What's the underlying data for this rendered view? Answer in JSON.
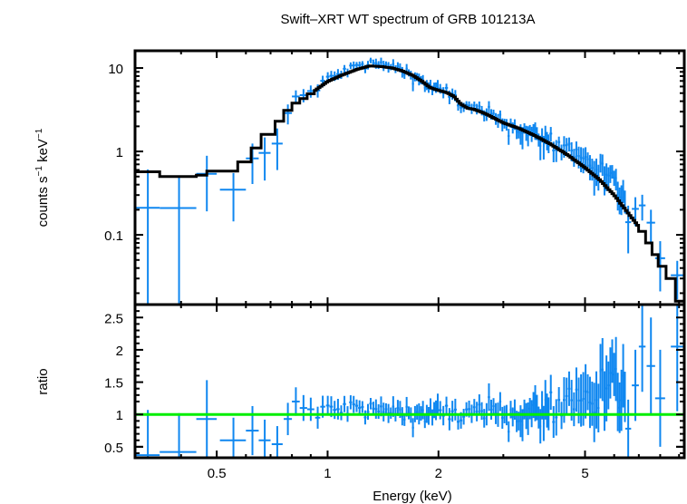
{
  "chart_data": {
    "type": "scatter",
    "title": "Swift–XRT WT spectrum of GRB 101213A",
    "xlabel": "Energy (keV)",
    "xscale": "log",
    "xlim": [
      0.3,
      9.3
    ],
    "x_ticks": [
      {
        "value": 0.5,
        "label": "0.5"
      },
      {
        "value": 1,
        "label": "1"
      },
      {
        "value": 2,
        "label": "2"
      },
      {
        "value": 5,
        "label": "5"
      }
    ],
    "colors": {
      "data": "#0f87f0",
      "model": "#000000",
      "unity": "#00ee00",
      "frame": "#000000"
    },
    "panels": {
      "spectrum": {
        "ylabel_main": "counts s",
        "ylabel_sup1": "−1",
        "ylabel_mid": " keV",
        "ylabel_sup2": "−1",
        "yscale": "log",
        "ylim": [
          0.0146,
          16.1
        ],
        "y_ticks": [
          {
            "value": 10,
            "label": "10"
          },
          {
            "value": 1,
            "label": "1"
          },
          {
            "value": 0.1,
            "label": "0.1"
          }
        ],
        "model_steps_low": [
          [
            0.3,
            0.35,
            0.57
          ],
          [
            0.35,
            0.44,
            0.5
          ],
          [
            0.44,
            0.47,
            0.52
          ],
          [
            0.47,
            0.57,
            0.58
          ],
          [
            0.57,
            0.62,
            0.75
          ],
          [
            0.62,
            0.66,
            1.1
          ],
          [
            0.66,
            0.72,
            1.6
          ],
          [
            0.72,
            0.76,
            2.3
          ],
          [
            0.76,
            0.8,
            3.1
          ],
          [
            0.8,
            0.84,
            3.8
          ],
          [
            0.84,
            0.88,
            4.3
          ],
          [
            0.88,
            0.92,
            4.9
          ]
        ],
        "model_curve": [
          [
            0.92,
            5.3
          ],
          [
            1.0,
            6.9
          ],
          [
            1.1,
            8.3
          ],
          [
            1.2,
            9.6
          ],
          [
            1.3,
            10.6
          ],
          [
            1.4,
            10.4
          ],
          [
            1.5,
            10.0
          ],
          [
            1.6,
            9.2
          ],
          [
            1.7,
            8.2
          ],
          [
            1.8,
            7.0
          ],
          [
            1.9,
            5.8
          ],
          [
            2.0,
            5.4
          ],
          [
            2.1,
            5.1
          ],
          [
            2.2,
            4.6
          ],
          [
            2.3,
            3.7
          ],
          [
            2.4,
            3.3
          ],
          [
            2.5,
            3.2
          ],
          [
            2.7,
            2.8
          ],
          [
            3.0,
            2.2
          ],
          [
            3.3,
            1.9
          ],
          [
            3.6,
            1.6
          ],
          [
            4.0,
            1.25
          ],
          [
            4.5,
            0.9
          ],
          [
            5.0,
            0.64
          ],
          [
            5.5,
            0.45
          ],
          [
            6.0,
            0.3
          ],
          [
            6.5,
            0.19
          ],
          [
            7.0,
            0.125
          ]
        ],
        "model_steps_high": [
          [
            7.0,
            7.3,
            0.11
          ],
          [
            7.3,
            7.6,
            0.08
          ],
          [
            7.6,
            7.9,
            0.058
          ],
          [
            7.9,
            8.3,
            0.042
          ],
          [
            8.3,
            8.8,
            0.03
          ],
          [
            8.8,
            9.3,
            0.016
          ]
        ]
      },
      "ratio": {
        "ylabel": "ratio",
        "yscale": "linear",
        "ylim": [
          0.33,
          2.7
        ],
        "y_ticks": [
          {
            "value": 0.5,
            "label": "0.5"
          },
          {
            "value": 1,
            "label": "1"
          },
          {
            "value": 1.5,
            "label": "1.5"
          },
          {
            "value": 2,
            "label": "2"
          },
          {
            "value": 2.5,
            "label": "2.5"
          }
        ],
        "unity_line": 1
      }
    },
    "data_points_low": [
      {
        "e": 0.325,
        "de": 0.025,
        "ratio": 0.37,
        "rerr": 0.7
      },
      {
        "e": 0.395,
        "de": 0.045,
        "ratio": 0.42,
        "rerr": 0.6
      },
      {
        "e": 0.47,
        "de": 0.03,
        "ratio": 0.93,
        "rerr": 0.6
      },
      {
        "e": 0.555,
        "de": 0.045,
        "ratio": 0.6,
        "rerr": 0.35
      },
      {
        "e": 0.625,
        "de": 0.025,
        "ratio": 0.75,
        "rerr": 0.38
      },
      {
        "e": 0.675,
        "de": 0.025,
        "ratio": 0.6,
        "rerr": 0.32
      },
      {
        "e": 0.73,
        "de": 0.025,
        "ratio": 0.54,
        "rerr": 0.28
      },
      {
        "e": 0.78,
        "de": 0.02,
        "ratio": 0.93,
        "rerr": 0.25
      },
      {
        "e": 0.82,
        "de": 0.02,
        "ratio": 1.2,
        "rerr": 0.22
      },
      {
        "e": 0.86,
        "de": 0.02,
        "ratio": 1.1,
        "rerr": 0.2
      },
      {
        "e": 0.9,
        "de": 0.02,
        "ratio": 1.08,
        "rerr": 0.18
      },
      {
        "e": 0.94,
        "de": 0.015,
        "ratio": 0.95,
        "rerr": 0.17
      },
      {
        "e": 0.97,
        "de": 0.015,
        "ratio": 1.12,
        "rerr": 0.17
      }
    ],
    "data_points_high_ratio_profile": [
      [
        1.0,
        1.05,
        0.16
      ],
      [
        1.2,
        1.1,
        0.15
      ],
      [
        1.4,
        1.05,
        0.14
      ],
      [
        1.6,
        1.02,
        0.15
      ],
      [
        1.8,
        1.0,
        0.15
      ],
      [
        2.0,
        1.02,
        0.16
      ],
      [
        2.4,
        1.0,
        0.17
      ],
      [
        2.8,
        1.03,
        0.2
      ],
      [
        3.2,
        1.0,
        0.22
      ],
      [
        3.6,
        0.98,
        0.25
      ],
      [
        4.0,
        1.1,
        0.3
      ],
      [
        4.5,
        1.25,
        0.35
      ],
      [
        5.0,
        1.25,
        0.4
      ],
      [
        5.5,
        1.3,
        0.45
      ],
      [
        6.0,
        1.35,
        0.5
      ]
    ],
    "data_points_tail": [
      {
        "e": 6.55,
        "de": 0.12,
        "ratio": 0.78,
        "rerr": 0.45
      },
      {
        "e": 6.85,
        "de": 0.15,
        "ratio": 1.45,
        "rerr": 0.55
      },
      {
        "e": 7.15,
        "de": 0.15,
        "ratio": 2.05,
        "rerr": 0.7
      },
      {
        "e": 7.55,
        "de": 0.2,
        "ratio": 1.75,
        "rerr": 0.75
      },
      {
        "e": 8.0,
        "de": 0.25,
        "ratio": 1.25,
        "rerr": 0.75
      },
      {
        "e": 8.9,
        "de": 0.35,
        "ratio": 2.05,
        "rerr": 1.0
      }
    ]
  }
}
